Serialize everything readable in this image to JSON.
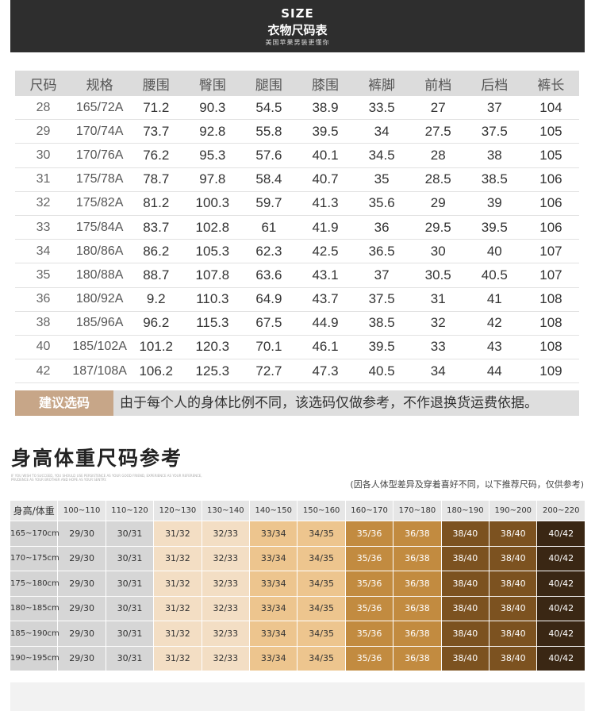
{
  "banner": {
    "title": "SIZE",
    "subtitle": "衣物尺码表",
    "tagline": "美国苹果男装更懂你"
  },
  "size_table": {
    "headers": [
      "尺码",
      "规格",
      "腰围",
      "臀围",
      "腿围",
      "膝围",
      "裤脚",
      "前档",
      "后档",
      "裤长"
    ],
    "rows": [
      [
        "28",
        "165/72A",
        "71.2",
        "90.3",
        "54.5",
        "38.9",
        "33.5",
        "27",
        "37",
        "104"
      ],
      [
        "29",
        "170/74A",
        "73.7",
        "92.8",
        "55.8",
        "39.5",
        "34",
        "27.5",
        "37.5",
        "105"
      ],
      [
        "30",
        "170/76A",
        "76.2",
        "95.3",
        "57.6",
        "40.1",
        "34.5",
        "28",
        "38",
        "105"
      ],
      [
        "31",
        "175/78A",
        "78.7",
        "97.8",
        "58.4",
        "40.7",
        "35",
        "28.5",
        "38.5",
        "106"
      ],
      [
        "32",
        "175/82A",
        "81.2",
        "100.3",
        "59.7",
        "41.3",
        "35.6",
        "29",
        "39",
        "106"
      ],
      [
        "33",
        "175/84A",
        "83.7",
        "102.8",
        "61",
        "41.9",
        "36",
        "29.5",
        "39.5",
        "106"
      ],
      [
        "34",
        "180/86A",
        "86.2",
        "105.3",
        "62.3",
        "42.5",
        "36.5",
        "30",
        "40",
        "107"
      ],
      [
        "35",
        "180/88A",
        "88.7",
        "107.8",
        "63.6",
        "43.1",
        "37",
        "30.5",
        "40.5",
        "107"
      ],
      [
        "36",
        "180/92A",
        "9.2",
        "110.3",
        "64.9",
        "43.7",
        "37.5",
        "31",
        "41",
        "108"
      ],
      [
        "38",
        "185/96A",
        "96.2",
        "115.3",
        "67.5",
        "44.9",
        "38.5",
        "32",
        "42",
        "108"
      ],
      [
        "40",
        "185/102A",
        "101.2",
        "120.3",
        "70.1",
        "46.1",
        "39.5",
        "33",
        "43",
        "108"
      ],
      [
        "42",
        "187/108A",
        "106.2",
        "125.3",
        "72.7",
        "47.3",
        "40.5",
        "34",
        "44",
        "109"
      ]
    ]
  },
  "suggestion": {
    "label": "建议选码",
    "text": "由于每个人的身体比例不同，该选码仅做参考，不作退换货运费依据。"
  },
  "weight_section": {
    "title": "身高体重尺码参考",
    "english": "IF YOU WISH TO SUCCEED, YOU SHOULD USE PERSISTENCE AS YOUR GOOD FRIEND, EXPERIENCE AS YOUR REFERENCE, PRUDENCE AS YOUR BROTHER AND HOPE AS YOUR SENTRY.",
    "note": "(因各人体型差异及穿着喜好不同，以下推荐尺码，仅供参考)",
    "corner": "身高/体重",
    "weights": [
      "100~110",
      "110~120",
      "120~130",
      "130~140",
      "140~150",
      "150~160",
      "160~170",
      "170~180",
      "180~190",
      "190~200",
      "200~220"
    ],
    "rows": [
      {
        "height": "165~170cm",
        "sizes": [
          "29/30",
          "30/31",
          "31/32",
          "32/33",
          "33/34",
          "34/35",
          "35/36",
          "36/38",
          "38/40",
          "38/40",
          "40/42"
        ]
      },
      {
        "height": "170~175cm",
        "sizes": [
          "29/30",
          "30/31",
          "31/32",
          "32/33",
          "33/34",
          "34/35",
          "35/36",
          "36/38",
          "38/40",
          "38/40",
          "40/42"
        ]
      },
      {
        "height": "175~180cm",
        "sizes": [
          "29/30",
          "30/31",
          "31/32",
          "32/33",
          "33/34",
          "34/35",
          "35/36",
          "36/38",
          "38/40",
          "38/40",
          "40/42"
        ]
      },
      {
        "height": "180~185cm",
        "sizes": [
          "29/30",
          "30/31",
          "31/32",
          "32/33",
          "33/34",
          "34/35",
          "35/36",
          "36/38",
          "38/40",
          "38/40",
          "40/42"
        ]
      },
      {
        "height": "185~190cm",
        "sizes": [
          "29/30",
          "30/31",
          "31/32",
          "32/33",
          "33/34",
          "34/35",
          "35/36",
          "36/38",
          "38/40",
          "38/40",
          "40/42"
        ]
      },
      {
        "height": "190~195cm",
        "sizes": [
          "29/30",
          "30/31",
          "31/32",
          "32/33",
          "33/34",
          "34/35",
          "35/36",
          "36/38",
          "38/40",
          "38/40",
          "40/42"
        ]
      }
    ]
  }
}
